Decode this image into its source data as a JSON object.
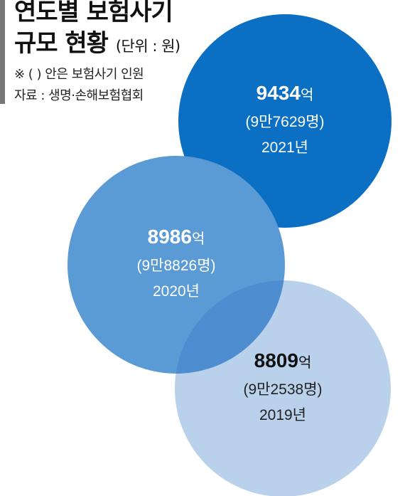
{
  "header": {
    "title_line1": "연도별 보험사기",
    "title_line2": "규모 현황",
    "unit": "(단위 : 원)",
    "note": "※ (  ) 안은 보험사기 인원",
    "source": "자료 : 생명·손해보험협회"
  },
  "chart_data": {
    "type": "bubble",
    "title": "연도별 보험사기 규모 현황",
    "unit": "원",
    "amount_unit": "억",
    "items": [
      {
        "year": "2021년",
        "amount": 9434,
        "amount_suffix": "억",
        "people_label": "(9만7629명)",
        "people": 97629,
        "color": "#0b6fc4",
        "text_color": "#ffffff",
        "bold_color": "#ffffff"
      },
      {
        "year": "2020년",
        "amount": 8986,
        "amount_suffix": "억",
        "people_label": "(9만8826명)",
        "people": 98826,
        "color": "#5b9bd5",
        "text_color": "#ffffff",
        "bold_color": "#ffffff"
      },
      {
        "year": "2019년",
        "amount": 8809,
        "amount_suffix": "억",
        "people_label": "(9만2538명)",
        "people": 92538,
        "color": "#b4cdea",
        "text_color": "#222222",
        "bold_color": "#111111"
      }
    ]
  }
}
